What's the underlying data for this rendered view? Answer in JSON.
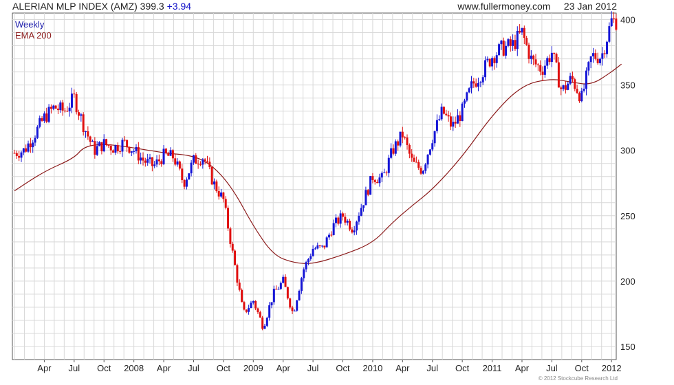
{
  "header": {
    "title": "ALERIAN MLP INDEX (AMZ) 399.3",
    "change": "+3.94",
    "site": "www.fullermoney.com",
    "date": "23 Jan 2012"
  },
  "copyright": "© 2012 Stockcube Research Ltd",
  "colors": {
    "up": "#1515d6",
    "down": "#e01010",
    "ema": "#8b1a1a",
    "grid": "#d8d8d8"
  },
  "chart_data": {
    "type": "candlestick",
    "legend": [
      "Weekly",
      "EMA 200"
    ],
    "ylim": [
      140,
      405
    ],
    "y_ticks": [
      150,
      200,
      250,
      300,
      350,
      400
    ],
    "x_ticks": [
      "Apr",
      "Jul",
      "Oct",
      "2008",
      "Apr",
      "Jul",
      "Oct",
      "2009",
      "Apr",
      "Jul",
      "Oct",
      "2010",
      "Apr",
      "Jul",
      "Oct",
      "2011",
      "Apr",
      "Jul",
      "Oct",
      "2012"
    ],
    "x_range": [
      "2007-01",
      "2012-01"
    ],
    "price_path": [
      [
        "2007-01",
        298
      ],
      [
        "2007-02",
        300
      ],
      [
        "2007-03",
        312
      ],
      [
        "2007-04",
        325
      ],
      [
        "2007-05",
        333
      ],
      [
        "2007-06",
        330
      ],
      [
        "2007-07",
        340
      ],
      [
        "2007-08",
        318
      ],
      [
        "2007-09",
        300
      ],
      [
        "2007-10",
        305
      ],
      [
        "2007-11",
        302
      ],
      [
        "2007-12",
        306
      ],
      [
        "2008-01",
        300
      ],
      [
        "2008-02",
        292
      ],
      [
        "2008-03",
        288
      ],
      [
        "2008-04",
        296
      ],
      [
        "2008-05",
        295
      ],
      [
        "2008-06",
        275
      ],
      [
        "2008-07",
        292
      ],
      [
        "2008-08",
        295
      ],
      [
        "2008-09",
        275
      ],
      [
        "2008-10",
        262
      ],
      [
        "2008-11",
        218
      ],
      [
        "2008-12",
        175
      ],
      [
        "2009-01",
        185
      ],
      [
        "2009-02",
        165
      ],
      [
        "2009-03",
        190
      ],
      [
        "2009-04",
        200
      ],
      [
        "2009-05",
        175
      ],
      [
        "2009-06",
        208
      ],
      [
        "2009-07",
        225
      ],
      [
        "2009-08",
        225
      ],
      [
        "2009-09",
        242
      ],
      [
        "2009-10",
        250
      ],
      [
        "2009-11",
        240
      ],
      [
        "2009-12",
        260
      ],
      [
        "2010-01",
        280
      ],
      [
        "2010-02",
        278
      ],
      [
        "2010-03",
        300
      ],
      [
        "2010-04",
        312
      ],
      [
        "2010-05",
        290
      ],
      [
        "2010-06",
        285
      ],
      [
        "2010-07",
        310
      ],
      [
        "2010-08",
        330
      ],
      [
        "2010-09",
        318
      ],
      [
        "2010-10",
        330
      ],
      [
        "2010-11",
        350
      ],
      [
        "2010-12",
        360
      ],
      [
        "2011-01",
        372
      ],
      [
        "2011-02",
        378
      ],
      [
        "2011-03",
        380
      ],
      [
        "2011-04",
        390
      ],
      [
        "2011-05",
        368
      ],
      [
        "2011-06",
        362
      ],
      [
        "2011-07",
        375
      ],
      [
        "2011-08",
        345
      ],
      [
        "2011-09",
        355
      ],
      [
        "2011-10",
        340
      ],
      [
        "2011-11",
        372
      ],
      [
        "2011-12",
        372
      ],
      [
        "2012-01",
        399
      ]
    ],
    "ema_200": [
      [
        "2007-01",
        269
      ],
      [
        "2007-04",
        284
      ],
      [
        "2007-07",
        294
      ],
      [
        "2007-08",
        303
      ],
      [
        "2007-10",
        305
      ],
      [
        "2008-01",
        302
      ],
      [
        "2008-04",
        298
      ],
      [
        "2008-07",
        296
      ],
      [
        "2008-09",
        288
      ],
      [
        "2008-11",
        270
      ],
      [
        "2009-01",
        242
      ],
      [
        "2009-03",
        220
      ],
      [
        "2009-05",
        214
      ],
      [
        "2009-07",
        213
      ],
      [
        "2009-10",
        220
      ],
      [
        "2010-01",
        229
      ],
      [
        "2010-03",
        245
      ],
      [
        "2010-05",
        258
      ],
      [
        "2010-07",
        270
      ],
      [
        "2010-10",
        295
      ],
      [
        "2011-01",
        327
      ],
      [
        "2011-04",
        350
      ],
      [
        "2011-07",
        355
      ],
      [
        "2011-09",
        352
      ],
      [
        "2011-11",
        350
      ],
      [
        "2012-01",
        360
      ],
      [
        "2012-02",
        366
      ]
    ]
  }
}
